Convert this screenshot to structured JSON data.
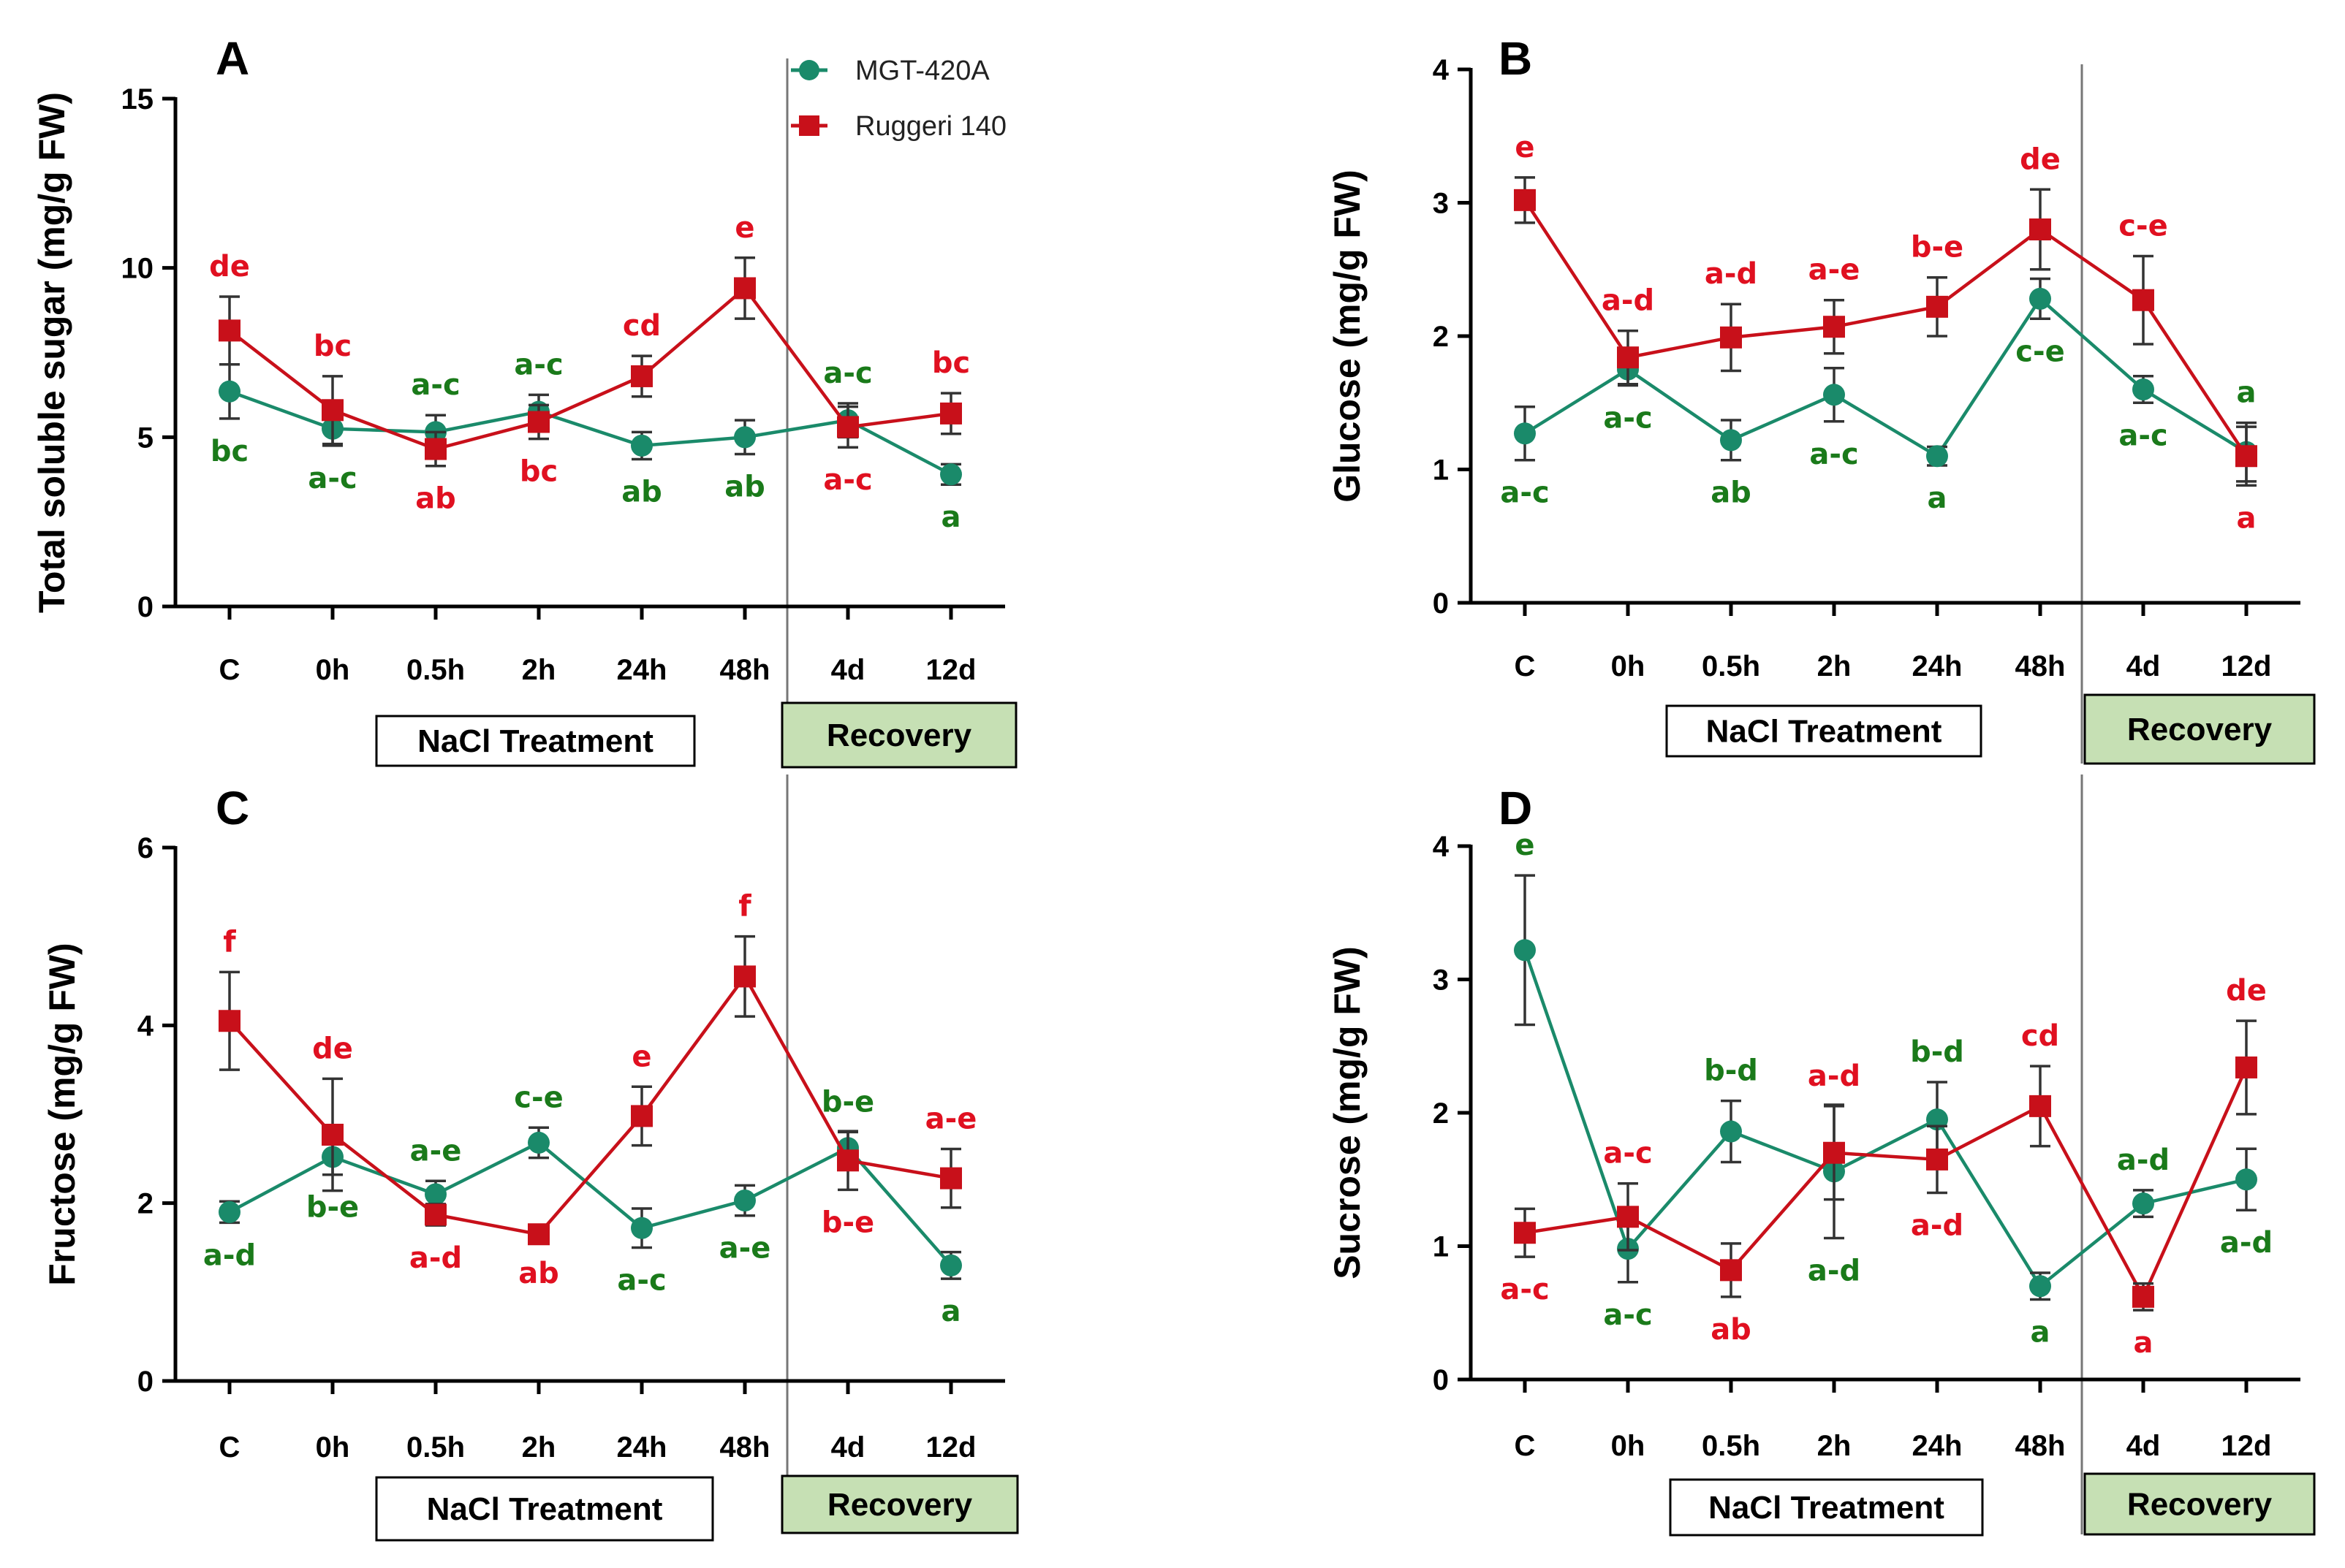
{
  "colors": {
    "mgt": "#1a8a6a",
    "ruggeri": "#c8101a",
    "mgt_label": "#1a7a1a",
    "ruggeri_label": "#e01020",
    "err": "#333333",
    "recovery_fill": "#c6e0b4"
  },
  "legend": {
    "series1": "MGT-420A",
    "series2": "Ruggeri 140"
  },
  "boxes": {
    "treatment": "NaCl Treatment",
    "recovery": "Recovery"
  },
  "chart_data": [
    {
      "panel": "A",
      "type": "line",
      "ylabel": "Total soluble sugar (mg/g FW)",
      "ylim": [
        0,
        15
      ],
      "yticks": [
        0,
        5,
        10,
        15
      ],
      "categories": [
        "C",
        "0h",
        "0.5h",
        "2h",
        "24h",
        "48h",
        "4d",
        "12d"
      ],
      "series": [
        {
          "name": "MGT-420A",
          "values": [
            6.35,
            5.25,
            5.15,
            5.75,
            4.75,
            5.0,
            5.5,
            3.9
          ],
          "errors": [
            0.8,
            0.5,
            0.5,
            0.5,
            0.4,
            0.5,
            0.5,
            0.3
          ],
          "labels": [
            "bc",
            "a-c",
            "a-c",
            "a-c",
            "ab",
            "ab",
            "a-c",
            "a"
          ]
        },
        {
          "name": "Ruggeri 140",
          "values": [
            8.15,
            5.8,
            4.65,
            5.45,
            6.8,
            9.4,
            5.3,
            5.7
          ],
          "errors": [
            1.0,
            1.0,
            0.5,
            0.5,
            0.6,
            0.9,
            0.6,
            0.6
          ],
          "labels": [
            "de",
            "bc",
            "ab",
            "bc",
            "cd",
            "e",
            "a-c",
            "bc"
          ]
        }
      ]
    },
    {
      "panel": "B",
      "type": "line",
      "ylabel": "Glucose (mg/g FW)",
      "ylim": [
        0,
        4
      ],
      "yticks": [
        0,
        1,
        2,
        3,
        4
      ],
      "categories": [
        "C",
        "0h",
        "0.5h",
        "2h",
        "24h",
        "48h",
        "4d",
        "12d"
      ],
      "series": [
        {
          "name": "MGT-420A",
          "values": [
            1.27,
            1.75,
            1.22,
            1.56,
            1.1,
            2.28,
            1.6,
            1.13
          ],
          "errors": [
            0.2,
            0.12,
            0.15,
            0.2,
            0.07,
            0.15,
            0.1,
            0.22
          ],
          "labels": [
            "a-c",
            "a-c",
            "ab",
            "a-c",
            "a",
            "c-e",
            "a-c",
            "a"
          ]
        },
        {
          "name": "Ruggeri 140",
          "values": [
            3.02,
            1.84,
            1.99,
            2.07,
            2.22,
            2.8,
            2.27,
            1.1
          ],
          "errors": [
            0.17,
            0.2,
            0.25,
            0.2,
            0.22,
            0.3,
            0.33,
            0.22
          ],
          "labels": [
            "e",
            "a-d",
            "a-d",
            "a-e",
            "b-e",
            "de",
            "c-e",
            "a"
          ]
        }
      ]
    },
    {
      "panel": "C",
      "type": "line",
      "ylabel": "Fructose (mg/g FW)",
      "ylim": [
        0,
        6
      ],
      "yticks": [
        0,
        2,
        4,
        6
      ],
      "categories": [
        "C",
        "0h",
        "0.5h",
        "2h",
        "24h",
        "48h",
        "4d",
        "12d"
      ],
      "series": [
        {
          "name": "MGT-420A",
          "values": [
            1.9,
            2.52,
            2.1,
            2.68,
            1.72,
            2.03,
            2.62,
            1.3
          ],
          "errors": [
            0.12,
            0.2,
            0.15,
            0.17,
            0.22,
            0.17,
            0.18,
            0.15
          ],
          "labels": [
            "a-d",
            "b-e",
            "a-e",
            "c-e",
            "a-c",
            "a-e",
            "b-e",
            "a"
          ]
        },
        {
          "name": "Ruggeri 140",
          "values": [
            4.05,
            2.77,
            1.87,
            1.65,
            2.98,
            4.55,
            2.48,
            2.28
          ],
          "errors": [
            0.55,
            0.63,
            0.12,
            0.07,
            0.33,
            0.45,
            0.33,
            0.33
          ],
          "labels": [
            "f",
            "de",
            "a-d",
            "ab",
            "e",
            "f",
            "b-e",
            "a-e"
          ]
        }
      ]
    },
    {
      "panel": "D",
      "type": "line",
      "ylabel": "Sucrose (mg/g FW)",
      "ylim": [
        0,
        4
      ],
      "yticks": [
        0,
        1,
        2,
        3,
        4
      ],
      "categories": [
        "C",
        "0h",
        "0.5h",
        "2h",
        "24h",
        "48h",
        "4d",
        "12d"
      ],
      "series": [
        {
          "name": "MGT-420A",
          "values": [
            3.22,
            0.98,
            1.86,
            1.56,
            1.95,
            0.7,
            1.32,
            1.5
          ],
          "errors": [
            0.56,
            0.25,
            0.23,
            0.5,
            0.28,
            0.1,
            0.1,
            0.23
          ],
          "labels": [
            "e",
            "a-c",
            "b-d",
            "a-d",
            "b-d",
            "a",
            "a-d",
            "a-d"
          ]
        },
        {
          "name": "Ruggeri 140",
          "values": [
            1.1,
            1.22,
            0.82,
            1.7,
            1.65,
            2.05,
            0.62,
            2.34
          ],
          "errors": [
            0.18,
            0.25,
            0.2,
            0.35,
            0.25,
            0.3,
            0.1,
            0.35
          ],
          "labels": [
            "a-c",
            "a-c",
            "ab",
            "a-d",
            "a-d",
            "cd",
            "a",
            "de"
          ]
        }
      ]
    }
  ]
}
